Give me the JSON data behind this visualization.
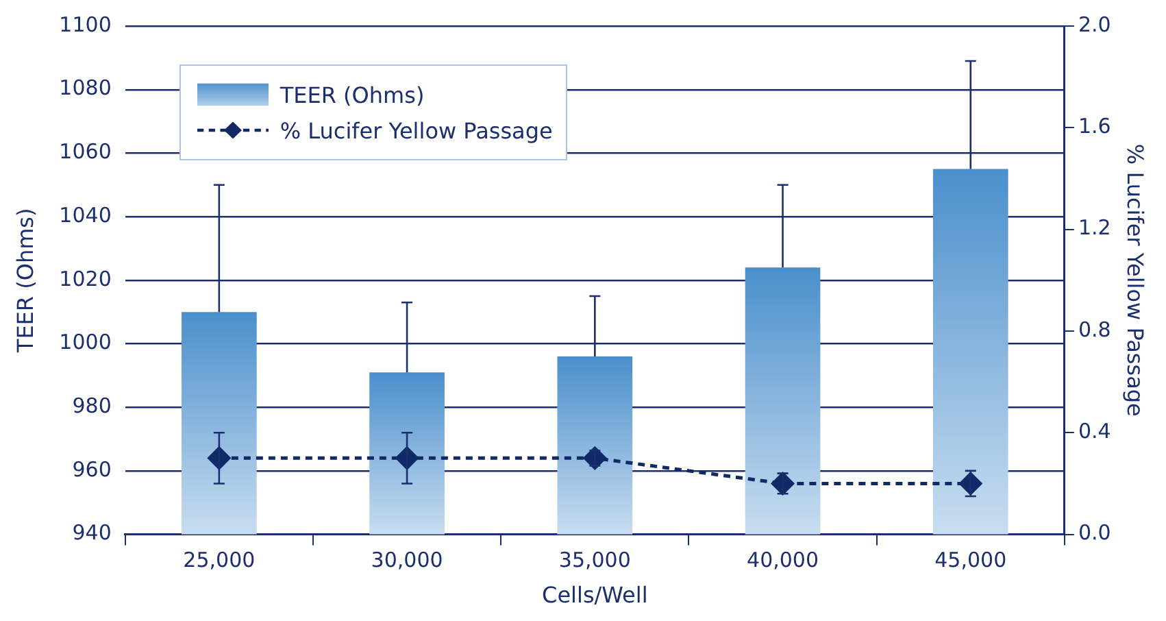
{
  "chart_data": {
    "type": "bar",
    "xlabel": "Cells/Well",
    "ylabel": "TEER (Ohms)",
    "y2label": "% Lucifer Yellow Passage",
    "categories": [
      "25,000",
      "30,000",
      "35,000",
      "40,000",
      "45,000"
    ],
    "series": [
      {
        "name": "TEER (Ohms)",
        "color": "#4a8fcc",
        "values": [
          1010,
          991,
          996,
          1024,
          1055
        ],
        "errors": [
          [
            1010,
            1050
          ],
          [
            991,
            1013
          ],
          [
            996,
            1015
          ],
          [
            1024,
            1050
          ],
          [
            1055,
            1089
          ]
        ]
      },
      {
        "name": "% Lucifer Yellow Passage",
        "type": "line",
        "axis": "y2",
        "color": "#0f2a66",
        "marker": "diamond",
        "line_style": "dashed",
        "values": [
          0.3,
          0.3,
          0.3,
          0.2,
          0.2
        ],
        "errors": [
          0.1,
          0.1,
          0.03,
          0.04,
          0.05
        ]
      }
    ],
    "ylim": [
      940,
      1100
    ],
    "yticks": [
      940,
      960,
      980,
      1000,
      1020,
      1040,
      1060,
      1080,
      1100
    ],
    "y2lim": [
      0,
      2
    ],
    "y2ticks": [
      {
        "value": 0,
        "label": "0.0"
      },
      {
        "value": 0.4,
        "label": "0.4"
      },
      {
        "value": 0.8,
        "label": "0.8"
      },
      {
        "value": 1.2,
        "label": "1.2"
      },
      {
        "value": 1.6,
        "label": "1.6"
      },
      {
        "value": 2,
        "label": "2.0"
      }
    ],
    "grid": "y",
    "legend": "top left"
  }
}
